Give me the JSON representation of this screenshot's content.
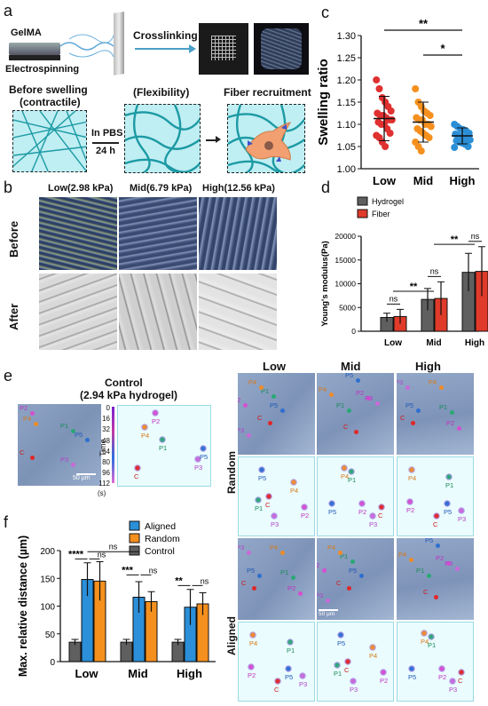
{
  "panels": {
    "a": "a",
    "b": "b",
    "c": "c",
    "d": "d",
    "e": "e",
    "f": "f"
  },
  "panel_a": {
    "gelma": "GelMA",
    "electrospinning": "Electrospinning",
    "crosslinking": "Crosslinking",
    "before_swelling": "Before swelling",
    "contractile": "(contractile)",
    "flexibility": "(Flexibility)",
    "fiber_recruitment": "Fiber recruitment",
    "in_pbs": "In PBS",
    "hours": "24 h"
  },
  "panel_b": {
    "columns": [
      "Low(2.98 kPa)",
      "Mid(6.79 kPa)",
      "High(12.56 kPa)"
    ],
    "rows": [
      "Before",
      "After"
    ]
  },
  "chart_data": [
    {
      "panel": "c",
      "type": "scatter",
      "categories": [
        "Low",
        "Mid",
        "High"
      ],
      "ylabel": "Swelling ratio",
      "ylim": [
        1.0,
        1.3
      ],
      "yticks": [
        "1.00",
        "1.05",
        "1.10",
        "1.15",
        "1.20",
        "1.25",
        "1.30"
      ],
      "colors": [
        "#e03030",
        "#f5901e",
        "#2a8fd6"
      ],
      "means": [
        1.113,
        1.105,
        1.074
      ],
      "sd": [
        0.05,
        0.045,
        0.018
      ],
      "points": [
        [
          1.2,
          1.18,
          1.16,
          1.15,
          1.14,
          1.13,
          1.125,
          1.12,
          1.12,
          1.115,
          1.11,
          1.11,
          1.105,
          1.1,
          1.1,
          1.09,
          1.08,
          1.075,
          1.07,
          1.06,
          1.05
        ],
        [
          1.18,
          1.15,
          1.14,
          1.13,
          1.125,
          1.12,
          1.115,
          1.11,
          1.11,
          1.1,
          1.1,
          1.095,
          1.09,
          1.085,
          1.08,
          1.075,
          1.07,
          1.06,
          1.05,
          1.04
        ],
        [
          1.1,
          1.095,
          1.09,
          1.088,
          1.085,
          1.08,
          1.078,
          1.075,
          1.073,
          1.07,
          1.068,
          1.065,
          1.063,
          1.06,
          1.058,
          1.055,
          1.05,
          1.048
        ]
      ],
      "sig": [
        {
          "from": 0,
          "to": 2,
          "label": "**"
        },
        {
          "from": 1,
          "to": 2,
          "label": "*"
        }
      ]
    },
    {
      "panel": "d",
      "type": "bar",
      "categories": [
        "Low",
        "Mid",
        "High"
      ],
      "ylabel": "Young's modulus(Pa)",
      "ylim": [
        0,
        20000
      ],
      "yticks": [
        "0",
        "5000",
        "10000",
        "15000",
        "20000"
      ],
      "series": [
        {
          "name": "Hydrogel",
          "values": [
            2900,
            6700,
            12400
          ],
          "err": [
            900,
            2300,
            4000
          ],
          "color": "#5f5f5f"
        },
        {
          "name": "Fiber",
          "values": [
            3100,
            6900,
            12600
          ],
          "err": [
            1500,
            3500,
            5200
          ],
          "color": "#e03a2a"
        }
      ],
      "sig": [
        "ns",
        "**",
        "ns",
        "ns",
        "**"
      ]
    },
    {
      "panel": "f",
      "type": "bar",
      "categories": [
        "Low",
        "Mid",
        "High"
      ],
      "ylabel": "Max. relative distance (µm)",
      "ylim": [
        0,
        200
      ],
      "yticks": [
        "0",
        "50",
        "100",
        "150",
        "200"
      ],
      "series": [
        {
          "name": "Aligned",
          "values": [
            148,
            116,
            98
          ],
          "err": [
            30,
            28,
            32
          ],
          "color": "#2b8fd9"
        },
        {
          "name": "Random",
          "values": [
            145,
            108,
            104
          ],
          "err": [
            35,
            18,
            20
          ],
          "color": "#f5901e"
        },
        {
          "name": "Control",
          "values": [
            35,
            35,
            35
          ],
          "err": [
            5,
            5,
            5
          ],
          "color": "#5f5f5f"
        }
      ],
      "sig": [
        "****",
        "ns",
        "***",
        "ns",
        "**",
        "ns",
        "ns"
      ]
    }
  ],
  "panel_e": {
    "control_title": "Control",
    "control_sub": "(2.94 kPa hydrogel)",
    "scale_50": "50 µm",
    "time_label": "Time",
    "time_unit": "(s)",
    "time_ticks": [
      "0",
      "16",
      "32",
      "48",
      "64",
      "80",
      "96",
      "112"
    ],
    "columns": [
      "Low",
      "Mid",
      "High"
    ],
    "rows": [
      "Random",
      "Aligned"
    ],
    "cell_labels": [
      "P1",
      "P2",
      "P3",
      "P4",
      "P5",
      "C"
    ]
  }
}
